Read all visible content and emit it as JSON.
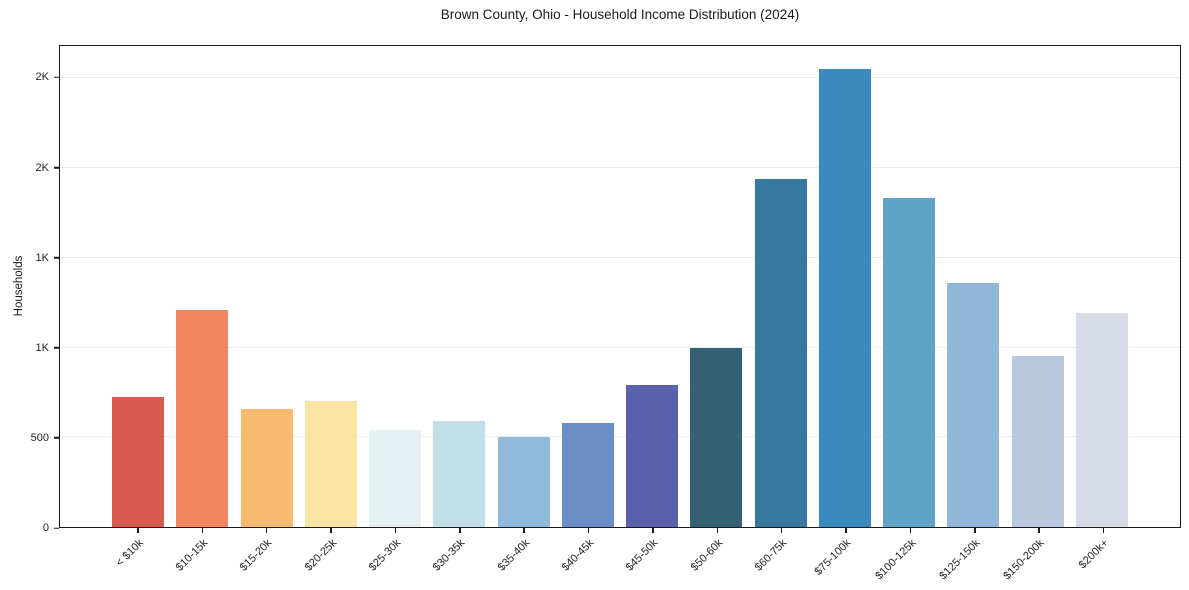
{
  "chart_data": {
    "type": "bar",
    "title": "Brown County, Ohio - Household Income Distribution (2024)",
    "xlabel": "",
    "ylabel": "Households",
    "categories": [
      "< $10k",
      "$10-15k",
      "$15-20k",
      "$20-25k",
      "$25-30k",
      "$30-35k",
      "$35-40k",
      "$40-45k",
      "$45-50k",
      "$50-60k",
      "$60-75k",
      "$75-100k",
      "$100-125k",
      "$125-150k",
      "$150-200k",
      "$200k+"
    ],
    "values": [
      725,
      1210,
      655,
      700,
      540,
      590,
      500,
      580,
      790,
      1000,
      1940,
      2550,
      1835,
      1360,
      955,
      1190
    ],
    "bar_colors": [
      "#d85b52",
      "#f0875f",
      "#f8ba70",
      "#fbe3a3",
      "#e5f2f3",
      "#c0dfe9",
      "#90badb",
      "#6b8ec6",
      "#5a5fae",
      "#356174",
      "#36789e",
      "#3a8ac0",
      "#5fa5c8",
      "#93b7d9",
      "#b9c8df",
      "#d7dae7"
    ],
    "ylim": [
      0,
      2680
    ],
    "yticks": [
      {
        "value": 0,
        "label": "0"
      },
      {
        "value": 500,
        "label": "500"
      },
      {
        "value": 1000,
        "label": "1K"
      },
      {
        "value": 1500,
        "label": "1K"
      },
      {
        "value": 2000,
        "label": "2K"
      },
      {
        "value": 2500,
        "label": "2K"
      }
    ],
    "xticklabel_rotation": 45,
    "grid": true,
    "legend_position": "none"
  },
  "colors": {
    "background": "#ffffff",
    "spine": "#1a1a1a",
    "grid": "#ececec",
    "text": "#1a1a1a"
  }
}
